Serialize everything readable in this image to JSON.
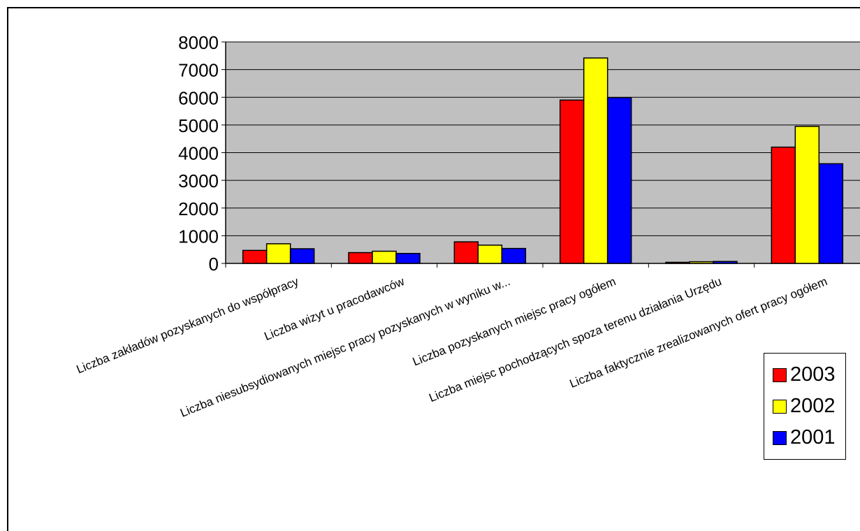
{
  "chart_data": {
    "type": "bar",
    "title": "",
    "xlabel": "",
    "ylabel": "",
    "ylim": [
      0,
      8000
    ],
    "yticks": [
      0,
      1000,
      2000,
      3000,
      4000,
      5000,
      6000,
      7000,
      8000
    ],
    "grid": true,
    "legend_position": "bottom-right",
    "plot_background": "#C0C0C0",
    "categories": [
      "Liczba zakładów pozyskanych do współpracy",
      "Liczba wizyt u pracodawców",
      "Liczba niesubsydiowanych miejsc pracy pozyskanych w wyniku w...",
      "Liczba pozyskanych miejsc pracy ogółem",
      "Liczba miejsc pochodzących spoza terenu działania Urzędu",
      "Liczba faktycznie zrealizowanych ofert pracy ogółem"
    ],
    "series": [
      {
        "name": "2003",
        "color": "#FF0000",
        "values": [
          470,
          390,
          780,
          5900,
          40,
          4200
        ]
      },
      {
        "name": "2002",
        "color": "#FFFF00",
        "values": [
          710,
          440,
          660,
          7420,
          60,
          4950
        ]
      },
      {
        "name": "2001",
        "color": "#0000FF",
        "values": [
          530,
          360,
          540,
          5990,
          70,
          3600
        ]
      }
    ]
  }
}
